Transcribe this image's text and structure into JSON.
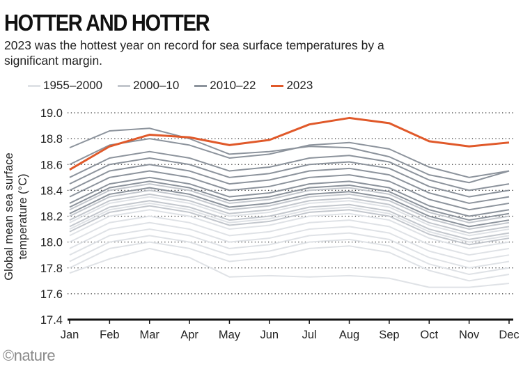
{
  "header": {
    "title": "HOTTER AND HOTTER",
    "subtitle": "2023 was the hottest year on record for sea surface temperatures by a significant margin."
  },
  "logo": "©nature",
  "chart_data": {
    "type": "line",
    "title": "HOTTER AND HOTTER",
    "ylabel": "Global mean sea surface temperature (°C)",
    "xlabel": "",
    "categories": [
      "Jan",
      "Feb",
      "Mar",
      "Apr",
      "May",
      "Jun",
      "Jul",
      "Aug",
      "Sep",
      "Oct",
      "Nov",
      "Dec"
    ],
    "ylim": [
      17.4,
      19.0
    ],
    "yticks": [
      "19.0",
      "18.8",
      "18.6",
      "18.4",
      "18.2",
      "18.0",
      "17.8",
      "17.6",
      "17.4"
    ],
    "grid": "horizontal dotted",
    "legend_position": "top",
    "legend": [
      {
        "name": "1955–2000",
        "color": "#dfe2e6"
      },
      {
        "name": "2000–10",
        "color": "#c3c7cd"
      },
      {
        "name": "2010–22",
        "color": "#8c939c"
      },
      {
        "name": "2023",
        "color": "#e0592a"
      }
    ],
    "series": [
      {
        "group": "1955–2000",
        "values": [
          18.15,
          18.3,
          18.35,
          18.3,
          18.2,
          18.23,
          18.3,
          18.32,
          18.27,
          18.13,
          18.05,
          18.1
        ]
      },
      {
        "group": "1955–2000",
        "values": [
          18.1,
          18.25,
          18.3,
          18.25,
          18.15,
          18.18,
          18.25,
          18.27,
          18.22,
          18.08,
          18.0,
          18.05
        ]
      },
      {
        "group": "1955–2000",
        "values": [
          18.05,
          18.2,
          18.25,
          18.2,
          18.1,
          18.13,
          18.2,
          18.22,
          18.17,
          18.03,
          17.95,
          18.0
        ]
      },
      {
        "group": "1955–2000",
        "values": [
          18.0,
          18.15,
          18.2,
          18.15,
          18.05,
          18.08,
          18.15,
          18.17,
          18.12,
          17.98,
          17.9,
          17.95
        ]
      },
      {
        "group": "1955–2000",
        "values": [
          17.95,
          18.1,
          18.15,
          18.1,
          18.0,
          18.03,
          18.1,
          18.12,
          18.07,
          17.93,
          17.85,
          17.9
        ]
      },
      {
        "group": "1955–2000",
        "values": [
          17.9,
          18.05,
          18.1,
          18.05,
          17.95,
          17.98,
          18.05,
          18.07,
          18.02,
          17.88,
          17.8,
          17.85
        ]
      },
      {
        "group": "1955–2000",
        "values": [
          17.85,
          18.0,
          18.05,
          18.0,
          17.9,
          17.93,
          18.0,
          18.02,
          17.97,
          17.83,
          17.75,
          17.8
        ]
      },
      {
        "group": "1955–2000",
        "values": [
          17.8,
          17.95,
          18.0,
          17.95,
          17.85,
          17.88,
          17.95,
          17.97,
          17.92,
          17.78,
          17.7,
          17.75
        ]
      },
      {
        "group": "1955–2000",
        "values": [
          17.76,
          17.87,
          17.95,
          17.88,
          17.73,
          17.74,
          17.73,
          17.74,
          17.72,
          17.65,
          17.65,
          17.68
        ]
      },
      {
        "group": "2000–10",
        "values": [
          18.25,
          18.4,
          18.45,
          18.4,
          18.3,
          18.33,
          18.4,
          18.42,
          18.37,
          18.23,
          18.15,
          18.2
        ]
      },
      {
        "group": "2000–10",
        "values": [
          18.2,
          18.35,
          18.4,
          18.35,
          18.25,
          18.28,
          18.35,
          18.37,
          18.32,
          18.18,
          18.1,
          18.15
        ]
      },
      {
        "group": "2000–10",
        "values": [
          18.17,
          18.32,
          18.37,
          18.32,
          18.22,
          18.25,
          18.32,
          18.34,
          18.29,
          18.15,
          18.07,
          18.12
        ]
      },
      {
        "group": "2000–10",
        "values": [
          18.12,
          18.27,
          18.32,
          18.27,
          18.17,
          18.2,
          18.27,
          18.29,
          18.24,
          18.1,
          18.02,
          18.07
        ]
      },
      {
        "group": "2000–10",
        "values": [
          18.08,
          18.23,
          18.28,
          18.23,
          18.13,
          18.16,
          18.23,
          18.25,
          18.2,
          18.06,
          17.98,
          18.03
        ]
      },
      {
        "group": "2010–22",
        "values": [
          18.73,
          18.86,
          18.88,
          18.8,
          18.68,
          18.7,
          18.74,
          18.73,
          18.66,
          18.52,
          18.46,
          18.55
        ]
      },
      {
        "group": "2010–22",
        "values": [
          18.6,
          18.75,
          18.8,
          18.75,
          18.65,
          18.68,
          18.75,
          18.77,
          18.72,
          18.58,
          18.5,
          18.55
        ]
      },
      {
        "group": "2010–22",
        "values": [
          18.5,
          18.65,
          18.7,
          18.65,
          18.55,
          18.58,
          18.65,
          18.67,
          18.62,
          18.48,
          18.4,
          18.45
        ]
      },
      {
        "group": "2010–22",
        "values": [
          18.45,
          18.6,
          18.65,
          18.6,
          18.5,
          18.53,
          18.6,
          18.62,
          18.57,
          18.43,
          18.35,
          18.4
        ]
      },
      {
        "group": "2010–22",
        "values": [
          18.4,
          18.55,
          18.6,
          18.55,
          18.45,
          18.48,
          18.55,
          18.57,
          18.52,
          18.38,
          18.3,
          18.35
        ]
      },
      {
        "group": "2010–22",
        "values": [
          18.35,
          18.5,
          18.55,
          18.5,
          18.4,
          18.43,
          18.5,
          18.52,
          18.47,
          18.33,
          18.25,
          18.3
        ]
      },
      {
        "group": "2010–22",
        "values": [
          18.3,
          18.45,
          18.5,
          18.45,
          18.35,
          18.38,
          18.45,
          18.47,
          18.42,
          18.28,
          18.2,
          18.25
        ]
      },
      {
        "group": "2010–22",
        "values": [
          18.27,
          18.42,
          18.47,
          18.42,
          18.32,
          18.35,
          18.42,
          18.44,
          18.39,
          18.25,
          18.17,
          18.22
        ]
      },
      {
        "group": "2010–22",
        "values": [
          18.22,
          18.37,
          18.42,
          18.37,
          18.27,
          18.3,
          18.37,
          18.39,
          18.34,
          18.2,
          18.12,
          18.17
        ]
      },
      {
        "group": "2023",
        "name": "2023",
        "values": [
          18.56,
          18.74,
          18.83,
          18.81,
          18.75,
          18.79,
          18.91,
          18.96,
          18.92,
          18.78,
          18.74,
          18.77
        ]
      }
    ]
  }
}
